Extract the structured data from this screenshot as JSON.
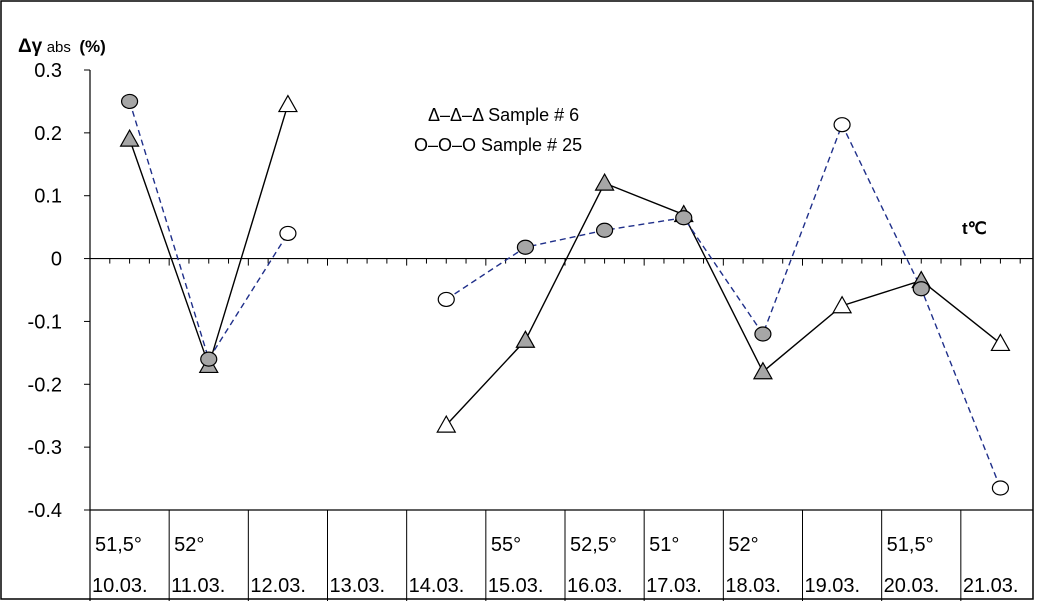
{
  "chart_data": {
    "type": "line",
    "ylabel_main": "Δγ",
    "ylabel_sub": "abs",
    "ylabel_unit": "(%)",
    "xaxis_unit_label": "t℃",
    "ylim": [
      -0.4,
      0.3
    ],
    "yticks": [
      0.3,
      0.2,
      0.1,
      0,
      -0.1,
      -0.2,
      -0.3,
      -0.4
    ],
    "ytick_labels": [
      "0.3",
      "0.2",
      "0.1",
      "0",
      "-0.1",
      "-0.2",
      "-0.3",
      "-0.4"
    ],
    "categories": [
      "10.03.",
      "11.03.",
      "12.03.",
      "13.03.",
      "14.03.",
      "15.03.",
      "16.03.",
      "17.03.",
      "18.03.",
      "19.03.",
      "20.03.",
      "21.03."
    ],
    "temperature_labels": [
      "51,5°",
      "52°",
      "",
      "",
      "",
      "55°",
      "52,5°",
      "51°",
      "52°",
      "",
      "51,5°",
      ""
    ],
    "legend": [
      {
        "text": "Δ–Δ–Δ Sample # 6"
      },
      {
        "text": "O–O–O  Sample # 25"
      }
    ],
    "series": [
      {
        "name": "Sample # 6",
        "color": "#000000",
        "line_style": "solid",
        "marker": "triangle",
        "segments": [
          [
            {
              "x": 0.5,
              "y": 0.19,
              "fill": "#a6a6a6"
            },
            {
              "x": 1.5,
              "y": -0.17,
              "fill": "#a6a6a6"
            },
            {
              "x": 2.5,
              "y": 0.245,
              "fill": "#ffffff"
            }
          ],
          [
            {
              "x": 4.5,
              "y": -0.265,
              "fill": "#ffffff"
            },
            {
              "x": 5.5,
              "y": -0.13,
              "fill": "#a6a6a6"
            },
            {
              "x": 6.5,
              "y": 0.12,
              "fill": "#a6a6a6"
            },
            {
              "x": 7.5,
              "y": 0.07,
              "fill": "#a6a6a6"
            },
            {
              "x": 8.5,
              "y": -0.18,
              "fill": "#a6a6a6"
            },
            {
              "x": 9.5,
              "y": -0.075,
              "fill": "#ffffff"
            },
            {
              "x": 10.5,
              "y": -0.035,
              "fill": "#a6a6a6"
            },
            {
              "x": 11.5,
              "y": -0.135,
              "fill": "#ffffff"
            }
          ]
        ]
      },
      {
        "name": "Sample # 25",
        "color": "#1f2f8a",
        "line_style": "dashed",
        "marker": "circle",
        "segments": [
          [
            {
              "x": 0.5,
              "y": 0.25,
              "fill": "#a6a6a6"
            },
            {
              "x": 1.5,
              "y": -0.16,
              "fill": "#a6a6a6"
            },
            {
              "x": 2.5,
              "y": 0.04,
              "fill": "#ffffff"
            }
          ],
          [
            {
              "x": 4.5,
              "y": -0.065,
              "fill": "#ffffff"
            },
            {
              "x": 5.5,
              "y": 0.018,
              "fill": "#a6a6a6"
            },
            {
              "x": 6.5,
              "y": 0.045,
              "fill": "#a6a6a6"
            },
            {
              "x": 7.5,
              "y": 0.065,
              "fill": "#a6a6a6"
            },
            {
              "x": 8.5,
              "y": -0.12,
              "fill": "#a6a6a6"
            },
            {
              "x": 9.5,
              "y": 0.213,
              "fill": "#ffffff"
            },
            {
              "x": 10.5,
              "y": -0.048,
              "fill": "#a6a6a6"
            },
            {
              "x": 11.5,
              "y": -0.365,
              "fill": "#ffffff"
            }
          ]
        ]
      }
    ]
  }
}
